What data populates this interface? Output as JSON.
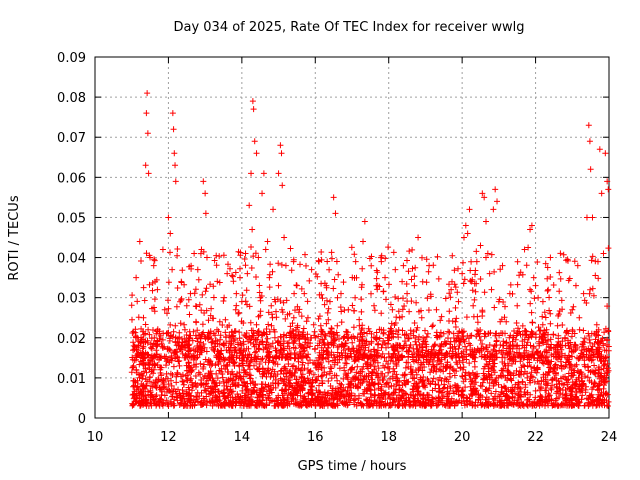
{
  "chart_data": {
    "type": "scatter",
    "title": "Day 034 of 2025, Rate Of TEC Index for receiver wwlg",
    "xlabel": "GPS time / hours",
    "ylabel": "ROTI / TECUs",
    "xlim": [
      10,
      24
    ],
    "ylim": [
      0,
      0.09
    ],
    "x_ticks": [
      10,
      12,
      14,
      16,
      18,
      20,
      22,
      24
    ],
    "x_tick_labels": [
      "10",
      "12",
      "14",
      "16",
      "18",
      "20",
      "22",
      "24"
    ],
    "y_ticks": [
      0,
      0.01,
      0.02,
      0.03,
      0.04,
      0.05,
      0.06,
      0.07,
      0.08,
      0.09
    ],
    "y_tick_labels": [
      "0",
      "0.01",
      "0.02",
      "0.03",
      "0.04",
      "0.05",
      "0.06",
      "0.07",
      "0.08",
      "0.09"
    ],
    "grid": true,
    "marker": "+",
    "color": "#ff0000",
    "series": [
      {
        "name": "ROTI",
        "points": [
          [
            11.05,
            0.013
          ],
          [
            11.1,
            0.009
          ],
          [
            11.12,
            0.035
          ],
          [
            11.18,
            0.018
          ],
          [
            11.22,
            0.044
          ],
          [
            11.28,
            0.011
          ],
          [
            11.32,
            0.025
          ],
          [
            11.38,
            0.063
          ],
          [
            11.4,
            0.076
          ],
          [
            11.42,
            0.081
          ],
          [
            11.44,
            0.071
          ],
          [
            11.46,
            0.061
          ],
          [
            11.5,
            0.04
          ],
          [
            11.55,
            0.012
          ],
          [
            11.6,
            0.038
          ],
          [
            11.65,
            0.008
          ],
          [
            11.7,
            0.032
          ],
          [
            11.75,
            0.021
          ],
          [
            11.8,
            0.015
          ],
          [
            11.85,
            0.042
          ],
          [
            11.9,
            0.027
          ],
          [
            11.95,
            0.011
          ],
          [
            12.0,
            0.05
          ],
          [
            12.05,
            0.046
          ],
          [
            12.1,
            0.037
          ],
          [
            12.12,
            0.076
          ],
          [
            12.14,
            0.072
          ],
          [
            12.16,
            0.066
          ],
          [
            12.18,
            0.063
          ],
          [
            12.2,
            0.059
          ],
          [
            12.25,
            0.019
          ],
          [
            12.3,
            0.013
          ],
          [
            12.35,
            0.034
          ],
          [
            12.4,
            0.009
          ],
          [
            12.45,
            0.022
          ],
          [
            12.5,
            0.028
          ],
          [
            12.55,
            0.016
          ],
          [
            12.6,
            0.031
          ],
          [
            12.65,
            0.012
          ],
          [
            12.7,
            0.041
          ],
          [
            12.75,
            0.024
          ],
          [
            12.8,
            0.037
          ],
          [
            12.85,
            0.018
          ],
          [
            12.9,
            0.042
          ],
          [
            12.95,
            0.059
          ],
          [
            13.0,
            0.056
          ],
          [
            13.02,
            0.051
          ],
          [
            13.05,
            0.04
          ],
          [
            13.1,
            0.014
          ],
          [
            13.2,
            0.019
          ],
          [
            13.3,
            0.011
          ],
          [
            13.4,
            0.024
          ],
          [
            13.5,
            0.015
          ],
          [
            13.6,
            0.036
          ],
          [
            13.7,
            0.02
          ],
          [
            13.8,
            0.013
          ],
          [
            13.85,
            0.031
          ],
          [
            13.9,
            0.026
          ],
          [
            13.95,
            0.035
          ],
          [
            14.0,
            0.029
          ],
          [
            14.05,
            0.012
          ],
          [
            14.1,
            0.041
          ],
          [
            14.15,
            0.036
          ],
          [
            14.2,
            0.053
          ],
          [
            14.25,
            0.061
          ],
          [
            14.28,
            0.047
          ],
          [
            14.3,
            0.079
          ],
          [
            14.32,
            0.077
          ],
          [
            14.35,
            0.069
          ],
          [
            14.4,
            0.066
          ],
          [
            14.45,
            0.04
          ],
          [
            14.5,
            0.03
          ],
          [
            14.55,
            0.056
          ],
          [
            14.6,
            0.061
          ],
          [
            14.65,
            0.042
          ],
          [
            14.7,
            0.044
          ],
          [
            14.75,
            0.035
          ],
          [
            14.8,
            0.028
          ],
          [
            14.85,
            0.052
          ],
          [
            14.9,
            0.02
          ],
          [
            15.0,
            0.061
          ],
          [
            15.05,
            0.068
          ],
          [
            15.08,
            0.066
          ],
          [
            15.1,
            0.058
          ],
          [
            15.15,
            0.045
          ],
          [
            15.2,
            0.038
          ],
          [
            15.3,
            0.026
          ],
          [
            15.4,
            0.021
          ],
          [
            15.5,
            0.033
          ],
          [
            15.6,
            0.018
          ],
          [
            15.7,
            0.031
          ],
          [
            15.8,
            0.025
          ],
          [
            15.9,
            0.037
          ],
          [
            16.0,
            0.02
          ],
          [
            16.1,
            0.039
          ],
          [
            16.2,
            0.015
          ],
          [
            16.3,
            0.033
          ],
          [
            16.4,
            0.029
          ],
          [
            16.5,
            0.055
          ],
          [
            16.55,
            0.051
          ],
          [
            16.6,
            0.023
          ],
          [
            16.7,
            0.031
          ],
          [
            16.8,
            0.018
          ],
          [
            16.9,
            0.027
          ],
          [
            17.0,
            0.012
          ],
          [
            17.1,
            0.039
          ],
          [
            17.2,
            0.023
          ],
          [
            17.3,
            0.044
          ],
          [
            17.35,
            0.049
          ],
          [
            17.4,
            0.019
          ],
          [
            17.5,
            0.013
          ],
          [
            17.6,
            0.028
          ],
          [
            17.7,
            0.033
          ],
          [
            17.8,
            0.039
          ],
          [
            17.85,
            0.021
          ],
          [
            17.9,
            0.035
          ],
          [
            18.0,
            0.016
          ],
          [
            18.1,
            0.027
          ],
          [
            18.2,
            0.01
          ],
          [
            18.3,
            0.025
          ],
          [
            18.4,
            0.038
          ],
          [
            18.5,
            0.031
          ],
          [
            18.6,
            0.021
          ],
          [
            18.7,
            0.033
          ],
          [
            18.8,
            0.045
          ],
          [
            18.9,
            0.025
          ],
          [
            19.0,
            0.019
          ],
          [
            19.1,
            0.038
          ],
          [
            19.2,
            0.014
          ],
          [
            19.3,
            0.027
          ],
          [
            19.4,
            0.018
          ],
          [
            19.5,
            0.021
          ],
          [
            19.6,
            0.016
          ],
          [
            19.7,
            0.032
          ],
          [
            19.8,
            0.019
          ],
          [
            19.9,
            0.029
          ],
          [
            20.0,
            0.036
          ],
          [
            20.05,
            0.045
          ],
          [
            20.1,
            0.048
          ],
          [
            20.15,
            0.046
          ],
          [
            20.2,
            0.052
          ],
          [
            20.25,
            0.034
          ],
          [
            20.3,
            0.028
          ],
          [
            20.4,
            0.039
          ],
          [
            20.5,
            0.043
          ],
          [
            20.55,
            0.056
          ],
          [
            20.6,
            0.055
          ],
          [
            20.65,
            0.049
          ],
          [
            20.7,
            0.041
          ],
          [
            20.75,
            0.036
          ],
          [
            20.8,
            0.032
          ],
          [
            20.85,
            0.052
          ],
          [
            20.9,
            0.057
          ],
          [
            20.95,
            0.054
          ],
          [
            21.0,
            0.029
          ],
          [
            21.1,
            0.038
          ],
          [
            21.2,
            0.024
          ],
          [
            21.3,
            0.031
          ],
          [
            21.4,
            0.02
          ],
          [
            21.5,
            0.028
          ],
          [
            21.6,
            0.015
          ],
          [
            21.7,
            0.042
          ],
          [
            21.8,
            0.02
          ],
          [
            21.85,
            0.047
          ],
          [
            21.9,
            0.048
          ],
          [
            21.95,
            0.035
          ],
          [
            22.0,
            0.033
          ],
          [
            22.1,
            0.018
          ],
          [
            22.2,
            0.029
          ],
          [
            22.3,
            0.022
          ],
          [
            22.4,
            0.026
          ],
          [
            22.5,
            0.016
          ],
          [
            22.6,
            0.023
          ],
          [
            22.7,
            0.017
          ],
          [
            22.8,
            0.02
          ],
          [
            22.9,
            0.018
          ],
          [
            23.0,
            0.027
          ],
          [
            23.1,
            0.033
          ],
          [
            23.15,
            0.038
          ],
          [
            23.2,
            0.022
          ],
          [
            23.3,
            0.019
          ],
          [
            23.4,
            0.05
          ],
          [
            23.45,
            0.073
          ],
          [
            23.48,
            0.069
          ],
          [
            23.5,
            0.062
          ],
          [
            23.55,
            0.05
          ],
          [
            23.6,
            0.021
          ],
          [
            23.7,
            0.039
          ],
          [
            23.75,
            0.067
          ],
          [
            23.8,
            0.056
          ],
          [
            23.85,
            0.041
          ],
          [
            23.9,
            0.066
          ],
          [
            23.95,
            0.059
          ],
          [
            23.98,
            0.057
          ]
        ]
      }
    ],
    "density_note": "Dense band of points between 0.003 and 0.02 TECU across the full 11–24 h range"
  }
}
